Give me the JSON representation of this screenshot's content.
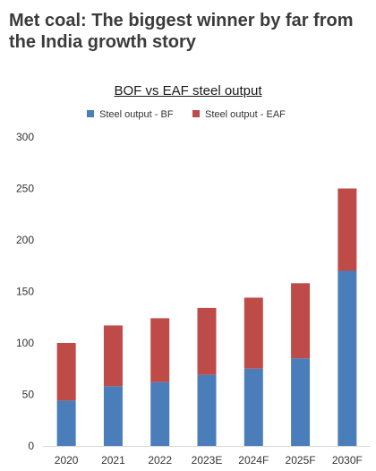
{
  "headline": "Met coal: The biggest winner by far from the India growth story",
  "chart_data": {
    "type": "bar",
    "stacked": true,
    "title": "BOF vs EAF steel output",
    "xlabel": "",
    "ylabel": "",
    "categories": [
      "2020",
      "2021",
      "2022",
      "2023E",
      "2024F",
      "2025F",
      "2030F"
    ],
    "series": [
      {
        "name": "Steel output - BF",
        "color": "#4a7ebb",
        "values": [
          44,
          58,
          62,
          69,
          75,
          85,
          170
        ]
      },
      {
        "name": "Steel output - EAF",
        "color": "#be4b48",
        "values": [
          56,
          59,
          62,
          65,
          69,
          73,
          80
        ]
      }
    ],
    "ylim": [
      0,
      300
    ],
    "yticks": [
      0,
      50,
      100,
      150,
      200,
      250,
      300
    ],
    "grid": false,
    "legend": "top"
  }
}
